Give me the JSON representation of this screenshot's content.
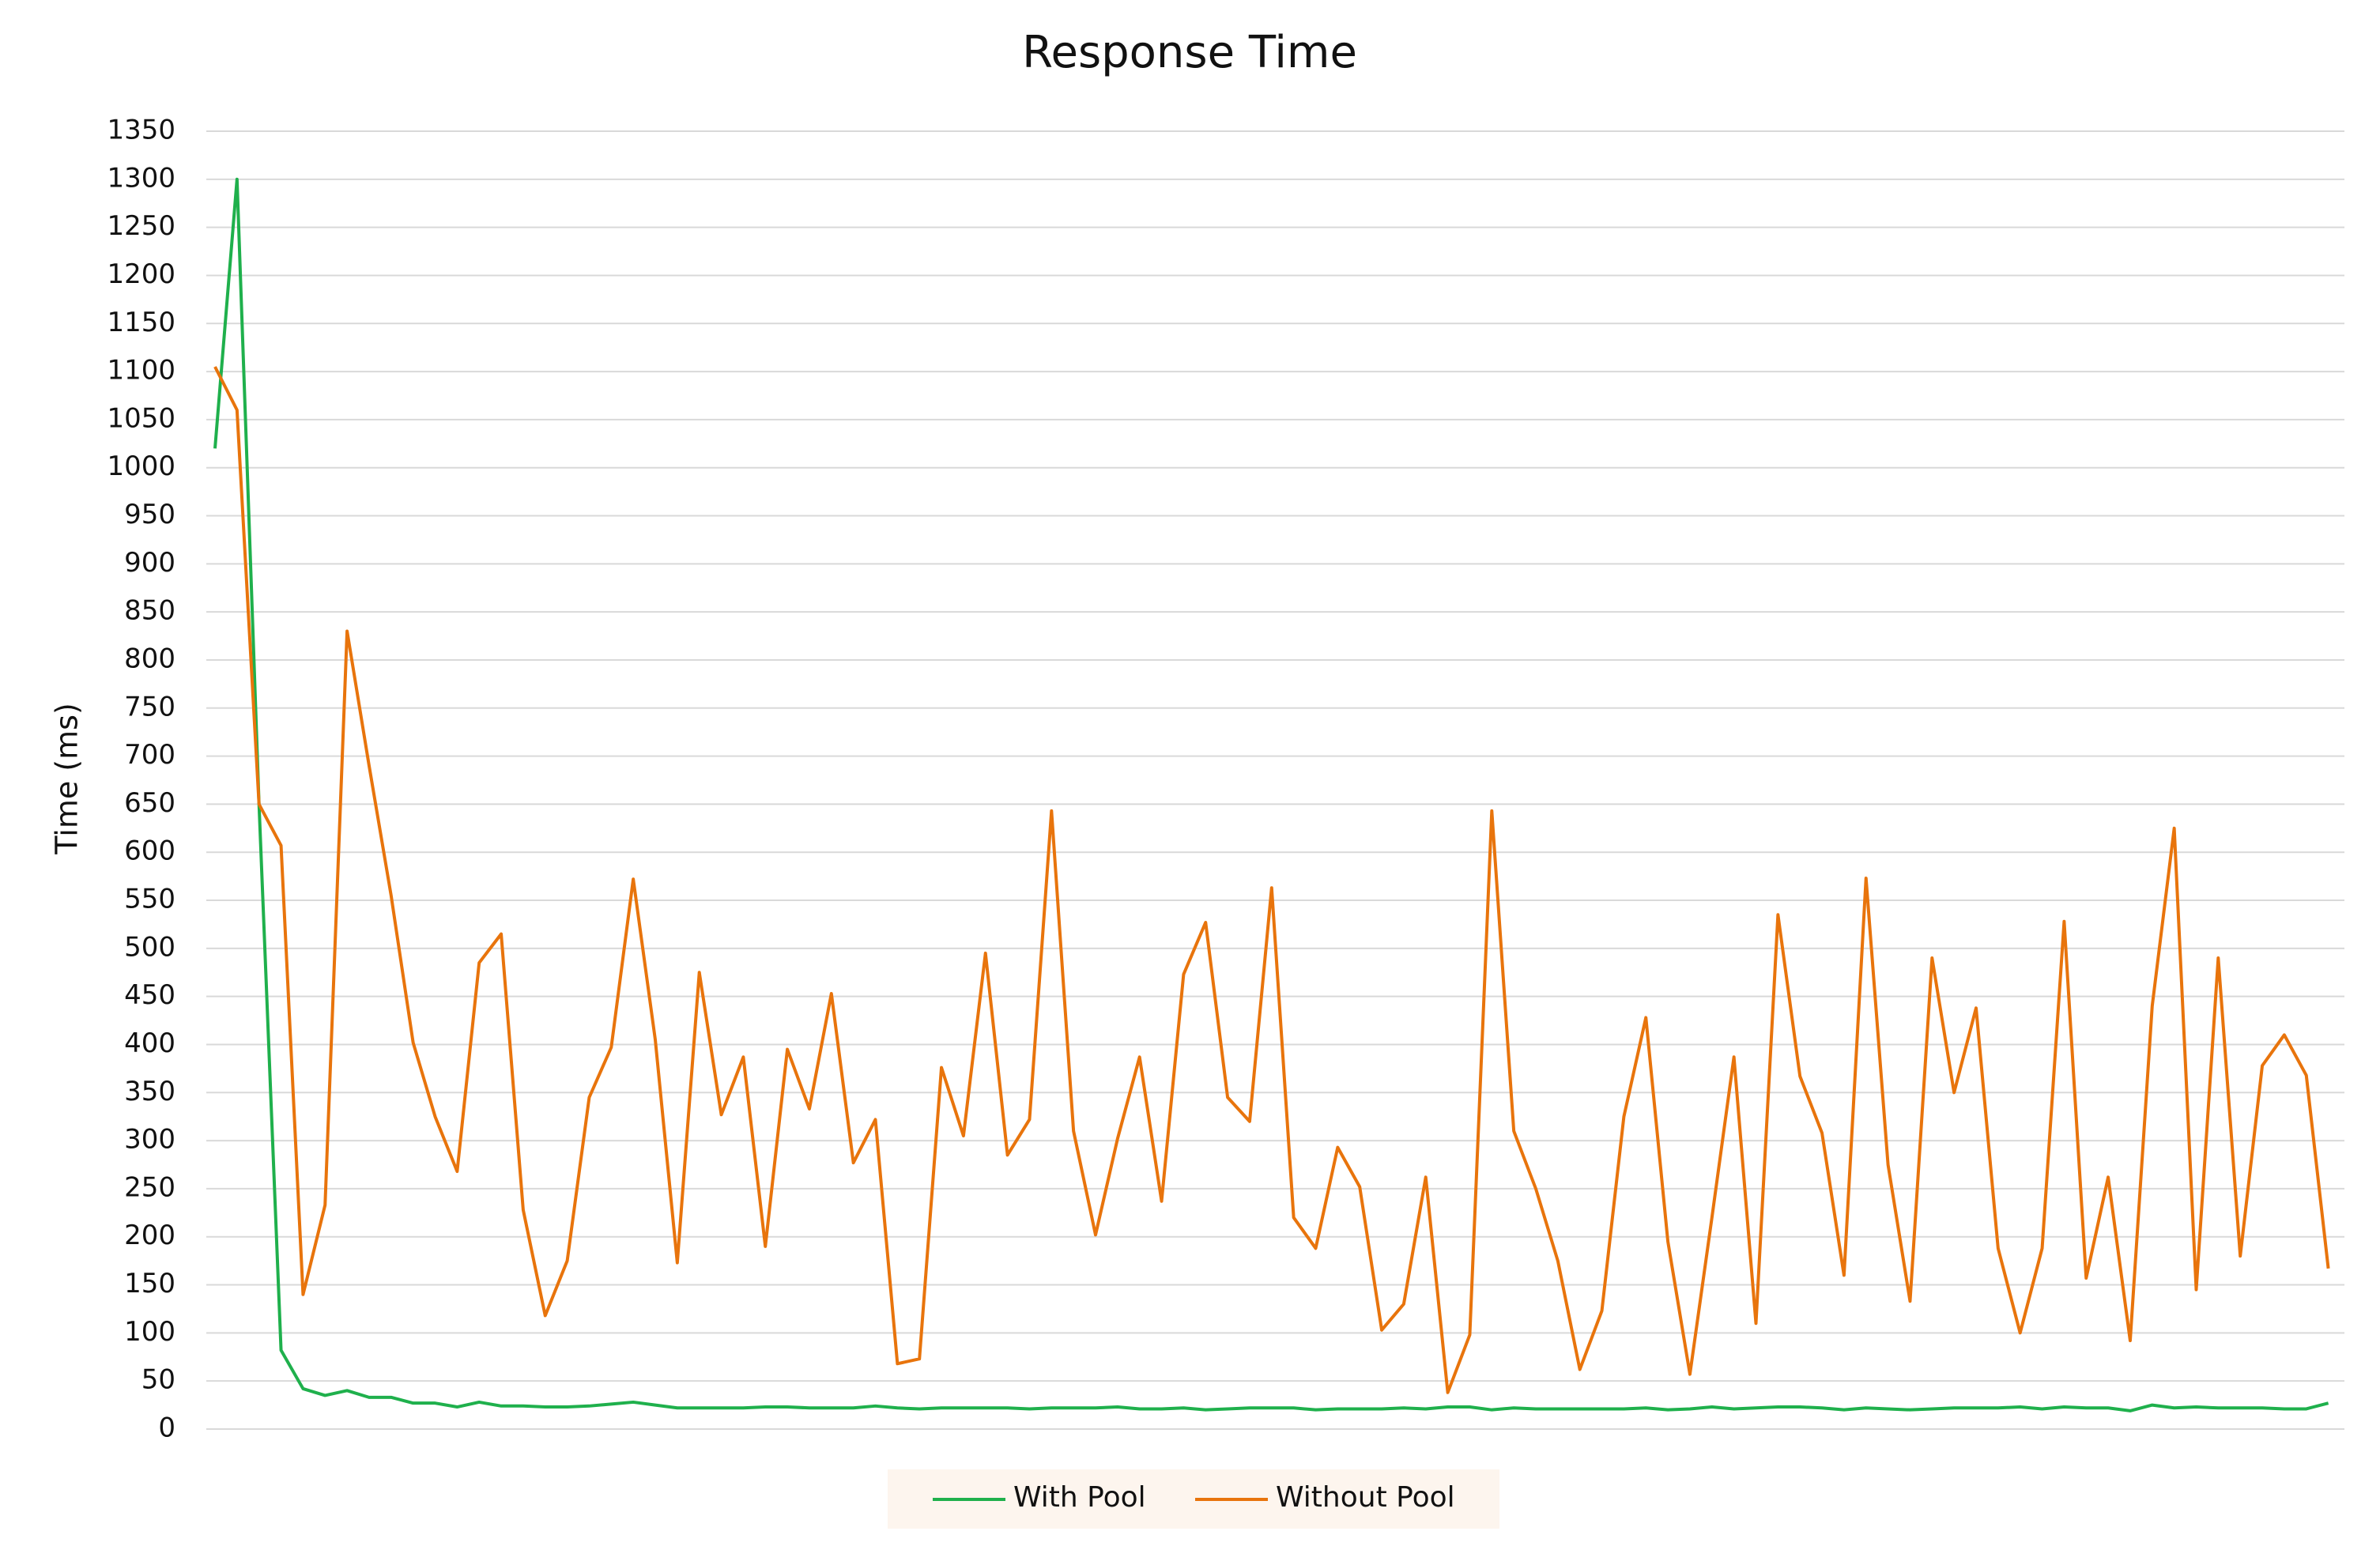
{
  "chart_data": {
    "type": "line",
    "title": "Response Time",
    "y_label": "Time (ms)",
    "categories": [
      null,
      null,
      null,
      null,
      null,
      null,
      null,
      null,
      null,
      null,
      null,
      null,
      null,
      null,
      null,
      null,
      null,
      null,
      null,
      null,
      null,
      null,
      null,
      null,
      null,
      null,
      null,
      null,
      null,
      null,
      null,
      null,
      null,
      null,
      null,
      null,
      null,
      null,
      null,
      null,
      null,
      null,
      null,
      null,
      null,
      null,
      null,
      null,
      null,
      null,
      null,
      null,
      null,
      null,
      null,
      null,
      null,
      null,
      null,
      null,
      null,
      null,
      null,
      null,
      null,
      null,
      null,
      null,
      null,
      null,
      null,
      null,
      null,
      null,
      null,
      null,
      null,
      null,
      null,
      null,
      null,
      null,
      null,
      null,
      null,
      null,
      null,
      null,
      null,
      null,
      null,
      null,
      null,
      null,
      null,
      null,
      null
    ],
    "series": [
      {
        "name": "With Pool",
        "color": "#1fb04c",
        "values": [
          1020,
          1300,
          650,
          82,
          42,
          35,
          40,
          33,
          33,
          27,
          27,
          23,
          28,
          24,
          24,
          23,
          23,
          24,
          26,
          28,
          25,
          22,
          22,
          22,
          22,
          23,
          23,
          22,
          22,
          22,
          24,
          22,
          21,
          22,
          22,
          22,
          22,
          21,
          22,
          22,
          22,
          23,
          21,
          21,
          22,
          20,
          21,
          22,
          22,
          22,
          20,
          21,
          21,
          21,
          22,
          21,
          23,
          23,
          20,
          22,
          21,
          21,
          21,
          21,
          21,
          22,
          20,
          21,
          23,
          21,
          22,
          23,
          23,
          22,
          20,
          22,
          21,
          20,
          21,
          22,
          22,
          22,
          23,
          21,
          23,
          22,
          22,
          19,
          25,
          22,
          23,
          22,
          22,
          22,
          21,
          21,
          27
        ]
      },
      {
        "name": "Without Pool",
        "color": "#e8740c",
        "values": [
          1105,
          1060,
          650,
          607,
          140,
          233,
          830,
          690,
          555,
          402,
          325,
          268,
          485,
          515,
          228,
          118,
          175,
          345,
          397,
          572,
          405,
          173,
          475,
          327,
          387,
          190,
          395,
          333,
          453,
          277,
          322,
          68,
          73,
          376,
          305,
          495,
          285,
          322,
          643,
          310,
          202,
          302,
          387,
          237,
          473,
          527,
          345,
          320,
          563,
          220,
          188,
          293,
          252,
          103,
          130,
          262,
          38,
          98,
          643,
          310,
          250,
          175,
          62,
          123,
          325,
          428,
          195,
          57,
          220,
          387,
          110,
          535,
          367,
          308,
          160,
          573,
          275,
          133,
          490,
          350,
          438,
          188,
          100,
          188,
          528,
          157,
          262,
          92,
          440,
          625,
          145,
          490,
          180,
          378,
          410,
          368,
          167
        ]
      }
    ],
    "ylim": [
      0,
      1350
    ],
    "yticks": [
      0,
      50,
      100,
      150,
      200,
      250,
      300,
      350,
      400,
      450,
      500,
      550,
      600,
      650,
      700,
      750,
      800,
      850,
      900,
      950,
      1000,
      1050,
      1100,
      1150,
      1200,
      1250,
      1300,
      1350
    ],
    "grid": true,
    "legend": "bottom"
  }
}
